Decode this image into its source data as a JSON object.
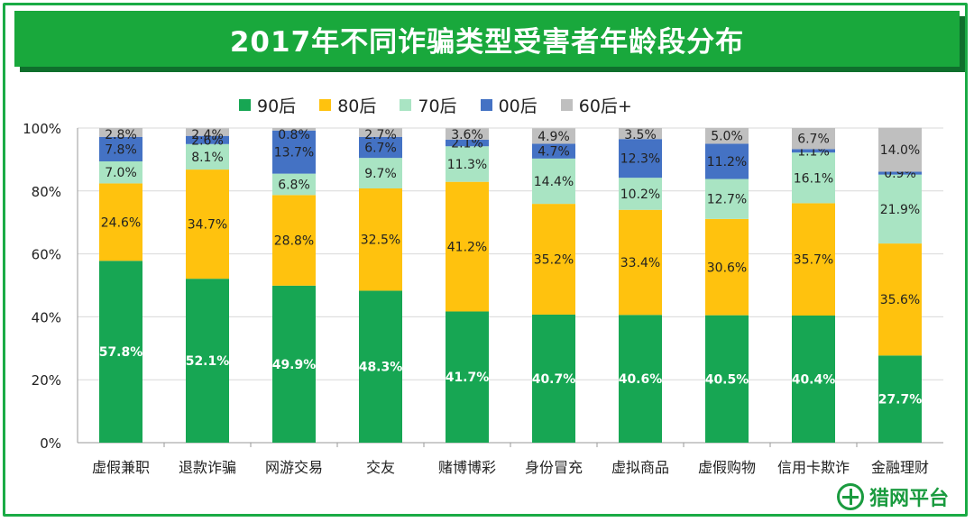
{
  "colors": {
    "90s": "#17a653",
    "80s": "#ffc20e",
    "70s": "#a9e4c3",
    "00s": "#4472c4",
    "60s": "#bfbfbf",
    "title_bg": "#19a83c"
  },
  "logo_text": "猎网平台",
  "chart_data": {
    "type": "bar",
    "stacked": true,
    "title": "2017年不同诈骗类型受害者年龄段分布",
    "ylim": [
      0,
      100
    ],
    "yticks": [
      "0%",
      "20%",
      "40%",
      "60%",
      "80%",
      "100%"
    ],
    "legend_position": "top",
    "categories": [
      "虚假兼职",
      "退款诈骗",
      "网游交易",
      "交友",
      "赌博博彩",
      "身份冒充",
      "虚拟商品",
      "虚假购物",
      "信用卡欺诈",
      "金融理财"
    ],
    "series": [
      {
        "name": "90后",
        "values": [
          57.8,
          52.1,
          49.9,
          48.3,
          41.7,
          40.7,
          40.6,
          40.5,
          40.4,
          27.7
        ],
        "labels": [
          "57.8%",
          "52.1%",
          "49.9%",
          "48.3%",
          "41.7%",
          "40.7%",
          "40.6%",
          "40.5%",
          "40.4%",
          "27.7%"
        ]
      },
      {
        "name": "80后",
        "values": [
          24.6,
          34.7,
          28.8,
          32.5,
          41.2,
          35.2,
          33.4,
          30.6,
          35.7,
          35.6
        ],
        "labels": [
          "24.6%",
          "34.7%",
          "28.8%",
          "32.5%",
          "41.2%",
          "35.2%",
          "33.4%",
          "30.6%",
          "35.7%",
          "35.6%"
        ]
      },
      {
        "name": "70后",
        "values": [
          7.0,
          8.1,
          6.8,
          9.7,
          11.3,
          14.4,
          10.2,
          12.7,
          16.1,
          21.9
        ],
        "labels": [
          "7.0%",
          "8.1%",
          "6.8%",
          "9.7%",
          "11.3%",
          "14.4%",
          "10.2%",
          "12.7%",
          "16.1%",
          "21.9%"
        ]
      },
      {
        "name": "00后",
        "values": [
          7.8,
          2.6,
          13.7,
          6.7,
          2.1,
          4.7,
          12.3,
          11.2,
          1.1,
          0.9
        ],
        "labels": [
          "7.8%",
          "2.6%",
          "13.7%",
          "6.7%",
          "2.1%",
          "4.7%",
          "12.3%",
          "11.2%",
          "1.1%",
          "0.9%"
        ]
      },
      {
        "name": "60后+",
        "values": [
          2.8,
          2.4,
          0.8,
          2.7,
          3.6,
          4.9,
          3.5,
          5.0,
          6.7,
          14.0
        ],
        "labels": [
          "2.8%",
          "2.4%",
          "0.8%",
          "2.7%",
          "3.6%",
          "4.9%",
          "3.5%",
          "5.0%",
          "6.7%",
          "14.0%"
        ]
      }
    ]
  }
}
